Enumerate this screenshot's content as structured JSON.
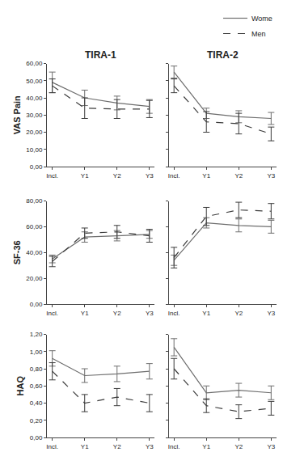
{
  "chart_data": [
    {
      "type": "line",
      "title": "TIRA-1",
      "ylabel": "VAS Pain",
      "categories": [
        "Incl.",
        "Y1",
        "Y2",
        "Y3"
      ],
      "ylim": [
        0,
        60
      ],
      "yticks": [
        {
          "value": 0,
          "label": "0,00"
        },
        {
          "value": 10,
          "label": "10,00"
        },
        {
          "value": 20,
          "label": "20,00"
        },
        {
          "value": 30,
          "label": "30,00"
        },
        {
          "value": 40,
          "label": "40,00"
        },
        {
          "value": 50,
          "label": "50,00"
        },
        {
          "value": 60,
          "label": "60,00"
        }
      ],
      "series": [
        {
          "name": "Wome",
          "color": "#6e6e6e",
          "line_style": "solid",
          "values": [
            49,
            40,
            37,
            35
          ],
          "error": [
            6,
            4.5,
            4,
            4
          ]
        },
        {
          "name": "Men",
          "color": "#3c3c3c",
          "line_style": "dashed",
          "values": [
            47,
            34,
            33.5,
            33.5
          ],
          "error": [
            4,
            6,
            5.5,
            5
          ]
        }
      ]
    },
    {
      "type": "line",
      "title": "TIRA-2",
      "legend": "upper right",
      "tick_labels": "x",
      "categories": [
        "Incl.",
        "Y1",
        "Y2",
        "Y3"
      ],
      "ylim": [
        0,
        60
      ],
      "yticks": [
        0,
        10,
        20,
        30,
        40,
        50,
        60
      ],
      "series": [
        {
          "name": "Wome",
          "color": "#6e6e6e",
          "line_style": "solid",
          "values": [
            55,
            31,
            29,
            28
          ],
          "error": [
            3.5,
            3,
            3.5,
            3.5
          ]
        },
        {
          "name": "Men",
          "color": "#3c3c3c",
          "line_style": "dashed",
          "values": [
            47,
            26,
            25,
            19
          ],
          "error": [
            4,
            6,
            6,
            4
          ]
        }
      ]
    },
    {
      "type": "line",
      "ylabel": "SF-36",
      "categories": [
        "Incl.",
        "Y1",
        "Y2",
        "Y3"
      ],
      "ylim": [
        0,
        80
      ],
      "yticks": [
        {
          "value": 0,
          "label": "0,00"
        },
        {
          "value": 20,
          "label": "20,00"
        },
        {
          "value": 40,
          "label": "40,00"
        },
        {
          "value": 60,
          "label": "60,00"
        },
        {
          "value": 80,
          "label": "80,00"
        }
      ],
      "series": [
        {
          "name": "Wome",
          "color": "#6e6e6e",
          "line_style": "solid",
          "values": [
            35,
            52,
            53,
            54
          ],
          "error": [
            3,
            4,
            4,
            3
          ]
        },
        {
          "name": "Men",
          "color": "#3c3c3c",
          "line_style": "dashed",
          "values": [
            33,
            55,
            56,
            53
          ],
          "error": [
            4,
            4,
            5,
            5
          ]
        }
      ]
    },
    {
      "type": "line",
      "tick_labels": "x",
      "categories": [
        "Incl.",
        "Y1",
        "Y2",
        "Y3"
      ],
      "ylim": [
        0,
        80
      ],
      "yticks": [
        0,
        20,
        40,
        60,
        80
      ],
      "series": [
        {
          "name": "Wome",
          "color": "#6e6e6e",
          "line_style": "solid",
          "values": [
            34,
            63,
            61,
            60
          ],
          "error": [
            4,
            4,
            5,
            5
          ]
        },
        {
          "name": "Men",
          "color": "#3c3c3c",
          "line_style": "dashed",
          "values": [
            36,
            68,
            73,
            72
          ],
          "error": [
            8,
            7,
            6,
            6
          ]
        }
      ]
    },
    {
      "type": "line",
      "ylabel": "HAQ",
      "categories": [
        "Incl.",
        "Y1",
        "Y2",
        "Y3"
      ],
      "ylim": [
        0,
        1.2
      ],
      "yticks": [
        {
          "value": 0,
          "label": "0,00"
        },
        {
          "value": 0.2,
          "label": "0,20"
        },
        {
          "value": 0.4,
          "label": "0,40"
        },
        {
          "value": 0.6,
          "label": "0,60"
        },
        {
          "value": 0.8,
          "label": "0,80"
        },
        {
          "value": 1.0,
          "label": "1,00"
        },
        {
          "value": 1.2,
          "label": "1,20"
        }
      ],
      "series": [
        {
          "name": "Wome",
          "color": "#6e6e6e",
          "line_style": "solid",
          "values": [
            0.92,
            0.72,
            0.74,
            0.77
          ],
          "error": [
            0.09,
            0.08,
            0.09,
            0.09
          ]
        },
        {
          "name": "Men",
          "color": "#3c3c3c",
          "line_style": "dashed",
          "values": [
            0.77,
            0.4,
            0.47,
            0.4
          ],
          "error": [
            0.1,
            0.1,
            0.1,
            0.1
          ]
        }
      ]
    },
    {
      "type": "line",
      "tick_labels": "x",
      "categories": [
        "Incl.",
        "Y1",
        "Y2",
        "Y3"
      ],
      "ylim": [
        0,
        1.2
      ],
      "yticks": [
        0,
        0.2,
        0.4,
        0.6,
        0.8,
        1.0,
        1.2
      ],
      "series": [
        {
          "name": "Wome",
          "color": "#6e6e6e",
          "line_style": "solid",
          "values": [
            1.05,
            0.52,
            0.55,
            0.52
          ],
          "error": [
            0.1,
            0.08,
            0.08,
            0.08
          ]
        },
        {
          "name": "Men",
          "color": "#3c3c3c",
          "line_style": "dashed",
          "values": [
            0.8,
            0.37,
            0.3,
            0.34
          ],
          "error": [
            0.12,
            0.08,
            0.08,
            0.08
          ]
        }
      ]
    }
  ]
}
